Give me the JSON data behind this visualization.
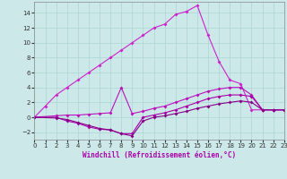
{
  "xlabel": "Windchill (Refroidissement éolien,°C)",
  "background_color": "#cce8e8",
  "grid_color": "#aad4d4",
  "xlim": [
    0,
    23
  ],
  "ylim": [
    -3,
    15.5
  ],
  "xticks": [
    0,
    1,
    2,
    3,
    4,
    5,
    6,
    7,
    8,
    9,
    10,
    11,
    12,
    13,
    14,
    15,
    16,
    17,
    18,
    19,
    20,
    21,
    22,
    23
  ],
  "yticks": [
    -2,
    0,
    2,
    4,
    6,
    8,
    10,
    12,
    14
  ],
  "series": [
    {
      "x": [
        0,
        1,
        2,
        3,
        4,
        5,
        6,
        7,
        8,
        9,
        10,
        11,
        12,
        13,
        14,
        15,
        16,
        17,
        18,
        19,
        20,
        21,
        22,
        23
      ],
      "y": [
        0,
        1.5,
        3,
        4,
        5,
        6,
        7,
        8,
        9,
        10,
        11,
        12,
        12.5,
        13.8,
        14.2,
        15,
        11,
        7.5,
        5,
        4.5,
        1,
        1,
        1,
        1
      ],
      "color": "#cc22cc"
    },
    {
      "x": [
        0,
        2,
        3,
        4,
        5,
        6,
        7,
        8,
        9,
        10,
        11,
        12,
        13,
        14,
        15,
        16,
        17,
        18,
        19,
        20,
        21,
        22,
        23
      ],
      "y": [
        0,
        0.2,
        0.3,
        0.3,
        0.4,
        0.5,
        0.6,
        4.0,
        0.5,
        0.8,
        1.2,
        1.5,
        2.0,
        2.5,
        3.0,
        3.5,
        3.8,
        4.0,
        4.0,
        3.0,
        1.0,
        1.0,
        1.0
      ],
      "color": "#bb11bb"
    },
    {
      "x": [
        0,
        2,
        3,
        4,
        5,
        6,
        7,
        8,
        9,
        10,
        11,
        12,
        13,
        14,
        15,
        16,
        17,
        18,
        19,
        20,
        21,
        22,
        23
      ],
      "y": [
        0,
        0.0,
        -0.5,
        -0.8,
        -1.3,
        -1.6,
        -1.7,
        -2.2,
        -2.2,
        0.0,
        0.3,
        0.6,
        1.0,
        1.5,
        2.0,
        2.5,
        2.8,
        3.0,
        3.0,
        2.8,
        1.0,
        1.0,
        1.0
      ],
      "color": "#aa00aa"
    },
    {
      "x": [
        0,
        2,
        3,
        4,
        5,
        6,
        7,
        8,
        9,
        10,
        11,
        12,
        13,
        14,
        15,
        16,
        17,
        18,
        19,
        20,
        21,
        22,
        23
      ],
      "y": [
        0,
        -0.1,
        -0.3,
        -0.7,
        -1.1,
        -1.5,
        -1.7,
        -2.2,
        -2.5,
        -0.5,
        0.0,
        0.2,
        0.5,
        0.8,
        1.2,
        1.5,
        1.8,
        2.0,
        2.2,
        2.0,
        1.0,
        1.0,
        1.0
      ],
      "color": "#880088"
    }
  ]
}
